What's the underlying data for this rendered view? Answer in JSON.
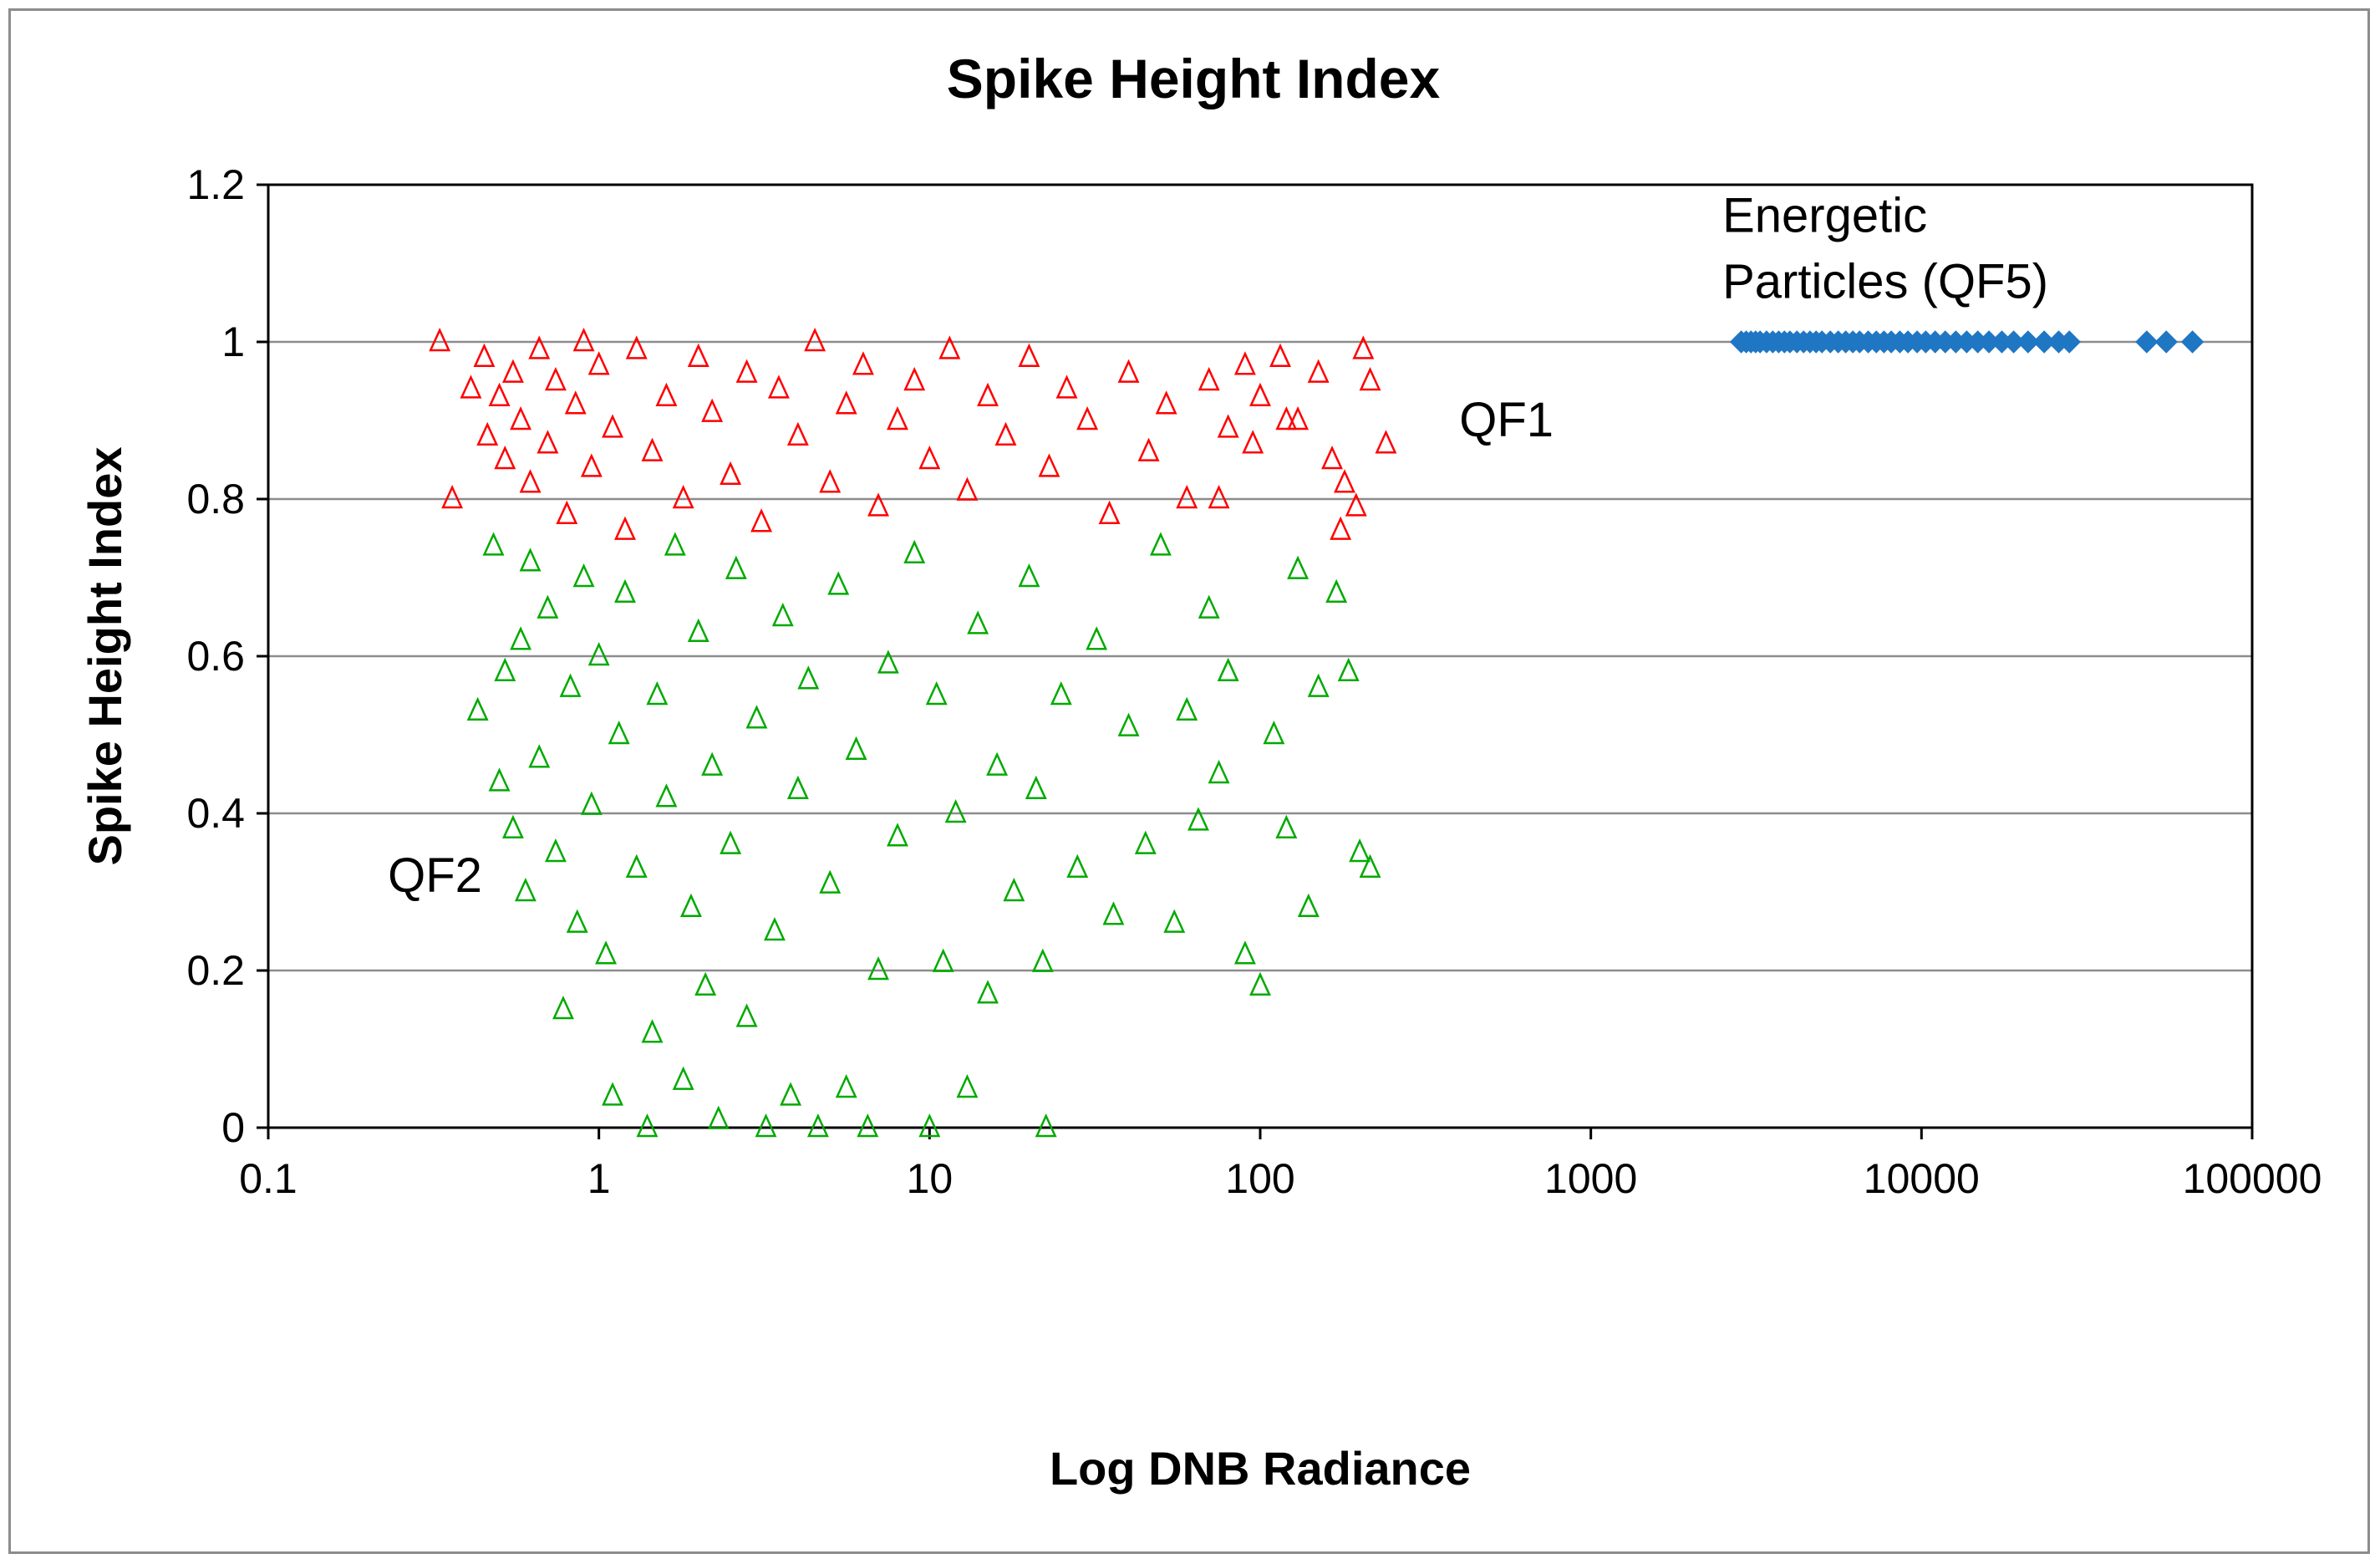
{
  "chart_data": {
    "type": "scatter",
    "title": "Spike Height Index",
    "xlabel": "Log DNB Radiance",
    "ylabel": "Spike Height Index",
    "x_scale": "log",
    "xlim": [
      0.1,
      100000
    ],
    "ylim": [
      0,
      1.2
    ],
    "x_ticks": [
      "0.1",
      "1",
      "10",
      "100",
      "1000",
      "10000",
      "100000"
    ],
    "y_ticks": [
      "0",
      "0.2",
      "0.4",
      "0.6",
      "0.8",
      "1",
      "1.2"
    ],
    "grid": "horizontal",
    "legend": "none",
    "annotations": [
      {
        "text": "QF1",
        "x": 400,
        "y": 0.88
      },
      {
        "text": "QF2",
        "x": 0.23,
        "y": 0.3
      },
      {
        "text": "Energetic",
        "x": 2500,
        "y": 1.14
      },
      {
        "text": "Particles (QF5)",
        "x": 2500,
        "y": 1.056
      }
    ],
    "series": [
      {
        "name": "",
        "marker": "triangle-open",
        "color": "#ff0000",
        "points": [
          [
            0.33,
            1.0
          ],
          [
            0.36,
            0.8
          ],
          [
            0.41,
            0.94
          ],
          [
            0.45,
            0.98
          ],
          [
            0.46,
            0.88
          ],
          [
            0.5,
            0.93
          ],
          [
            0.52,
            0.85
          ],
          [
            0.55,
            0.96
          ],
          [
            0.58,
            0.9
          ],
          [
            0.62,
            0.82
          ],
          [
            0.66,
            0.99
          ],
          [
            0.7,
            0.87
          ],
          [
            0.74,
            0.95
          ],
          [
            0.8,
            0.78
          ],
          [
            0.85,
            0.92
          ],
          [
            0.9,
            1.0
          ],
          [
            0.95,
            0.84
          ],
          [
            1.0,
            0.97
          ],
          [
            1.1,
            0.89
          ],
          [
            1.2,
            0.76
          ],
          [
            1.3,
            0.99
          ],
          [
            1.45,
            0.86
          ],
          [
            1.6,
            0.93
          ],
          [
            1.8,
            0.8
          ],
          [
            2.0,
            0.98
          ],
          [
            2.2,
            0.91
          ],
          [
            2.5,
            0.83
          ],
          [
            2.8,
            0.96
          ],
          [
            3.1,
            0.77
          ],
          [
            3.5,
            0.94
          ],
          [
            4.0,
            0.88
          ],
          [
            4.5,
            1.0
          ],
          [
            5.0,
            0.82
          ],
          [
            5.6,
            0.92
          ],
          [
            6.3,
            0.97
          ],
          [
            7.0,
            0.79
          ],
          [
            8.0,
            0.9
          ],
          [
            9.0,
            0.95
          ],
          [
            10.0,
            0.85
          ],
          [
            11.5,
            0.99
          ],
          [
            13.0,
            0.81
          ],
          [
            15.0,
            0.93
          ],
          [
            17.0,
            0.88
          ],
          [
            20.0,
            0.98
          ],
          [
            23.0,
            0.84
          ],
          [
            26.0,
            0.94
          ],
          [
            30.0,
            0.9
          ],
          [
            35.0,
            0.78
          ],
          [
            40.0,
            0.96
          ],
          [
            46.0,
            0.86
          ],
          [
            52.0,
            0.92
          ],
          [
            60.0,
            0.8
          ],
          [
            70.0,
            0.95
          ],
          [
            80.0,
            0.89
          ],
          [
            90.0,
            0.97
          ],
          [
            100.0,
            0.93
          ],
          [
            115.0,
            0.98
          ],
          [
            130.0,
            0.9
          ],
          [
            150.0,
            0.96
          ],
          [
            165.0,
            0.85
          ],
          [
            180.0,
            0.82
          ],
          [
            195.0,
            0.79
          ],
          [
            205.0,
            0.99
          ],
          [
            215.0,
            0.95
          ],
          [
            240.0,
            0.87
          ],
          [
            175.0,
            0.76
          ],
          [
            120.0,
            0.9
          ],
          [
            95.0,
            0.87
          ],
          [
            75.0,
            0.8
          ]
        ]
      },
      {
        "name": "",
        "marker": "triangle-open",
        "color": "#00aa00",
        "points": [
          [
            0.43,
            0.53
          ],
          [
            0.48,
            0.74
          ],
          [
            0.5,
            0.44
          ],
          [
            0.52,
            0.58
          ],
          [
            0.55,
            0.38
          ],
          [
            0.58,
            0.62
          ],
          [
            0.6,
            0.3
          ],
          [
            0.62,
            0.72
          ],
          [
            0.66,
            0.47
          ],
          [
            0.7,
            0.66
          ],
          [
            0.74,
            0.35
          ],
          [
            0.78,
            0.15
          ],
          [
            0.82,
            0.56
          ],
          [
            0.86,
            0.26
          ],
          [
            0.9,
            0.7
          ],
          [
            0.95,
            0.41
          ],
          [
            1.0,
            0.6
          ],
          [
            1.05,
            0.22
          ],
          [
            1.1,
            0.04
          ],
          [
            1.15,
            0.5
          ],
          [
            1.2,
            0.68
          ],
          [
            1.3,
            0.33
          ],
          [
            1.4,
            0.0
          ],
          [
            1.45,
            0.12
          ],
          [
            1.5,
            0.55
          ],
          [
            1.6,
            0.42
          ],
          [
            1.7,
            0.74
          ],
          [
            1.8,
            0.06
          ],
          [
            1.9,
            0.28
          ],
          [
            2.0,
            0.63
          ],
          [
            2.1,
            0.18
          ],
          [
            2.2,
            0.46
          ],
          [
            2.3,
            0.01
          ],
          [
            2.5,
            0.36
          ],
          [
            2.6,
            0.71
          ],
          [
            2.8,
            0.14
          ],
          [
            3.0,
            0.52
          ],
          [
            3.2,
            0.0
          ],
          [
            3.4,
            0.25
          ],
          [
            3.6,
            0.65
          ],
          [
            3.8,
            0.04
          ],
          [
            4.0,
            0.43
          ],
          [
            4.3,
            0.57
          ],
          [
            4.6,
            0.0
          ],
          [
            5.0,
            0.31
          ],
          [
            5.3,
            0.69
          ],
          [
            5.6,
            0.05
          ],
          [
            6.0,
            0.48
          ],
          [
            6.5,
            0.0
          ],
          [
            7.0,
            0.2
          ],
          [
            7.5,
            0.59
          ],
          [
            8.0,
            0.37
          ],
          [
            9.0,
            0.73
          ],
          [
            10.0,
            0.0
          ],
          [
            10.5,
            0.55
          ],
          [
            11.0,
            0.21
          ],
          [
            12.0,
            0.4
          ],
          [
            13.0,
            0.05
          ],
          [
            14.0,
            0.64
          ],
          [
            15.0,
            0.17
          ],
          [
            16.0,
            0.46
          ],
          [
            18.0,
            0.3
          ],
          [
            20.0,
            0.7
          ],
          [
            21.0,
            0.43
          ],
          [
            22.0,
            0.21
          ],
          [
            22.5,
            0.0
          ],
          [
            25.0,
            0.55
          ],
          [
            28.0,
            0.33
          ],
          [
            32.0,
            0.62
          ],
          [
            36.0,
            0.27
          ],
          [
            40.0,
            0.51
          ],
          [
            45.0,
            0.36
          ],
          [
            50.0,
            0.74
          ],
          [
            55.0,
            0.26
          ],
          [
            60.0,
            0.53
          ],
          [
            65.0,
            0.39
          ],
          [
            70.0,
            0.66
          ],
          [
            75.0,
            0.45
          ],
          [
            80.0,
            0.58
          ],
          [
            90.0,
            0.22
          ],
          [
            100.0,
            0.18
          ],
          [
            110.0,
            0.5
          ],
          [
            120.0,
            0.38
          ],
          [
            130.0,
            0.71
          ],
          [
            140.0,
            0.28
          ],
          [
            150.0,
            0.56
          ],
          [
            170.0,
            0.68
          ],
          [
            185.0,
            0.58
          ],
          [
            200.0,
            0.35
          ],
          [
            215.0,
            0.33
          ]
        ]
      },
      {
        "name": "",
        "marker": "diamond",
        "color": "#1f77c4",
        "points": [
          [
            2850,
            1.0
          ],
          [
            2950,
            1.0
          ],
          [
            3050,
            1.0
          ],
          [
            3150,
            1.0
          ],
          [
            3250,
            1.0
          ],
          [
            3400,
            1.0
          ],
          [
            3550,
            1.0
          ],
          [
            3700,
            1.0
          ],
          [
            3850,
            1.0
          ],
          [
            4000,
            1.0
          ],
          [
            4200,
            1.0
          ],
          [
            4400,
            1.0
          ],
          [
            4600,
            1.0
          ],
          [
            4800,
            1.0
          ],
          [
            5000,
            1.0
          ],
          [
            5300,
            1.0
          ],
          [
            5600,
            1.0
          ],
          [
            5900,
            1.0
          ],
          [
            6200,
            1.0
          ],
          [
            6500,
            1.0
          ],
          [
            6900,
            1.0
          ],
          [
            7300,
            1.0
          ],
          [
            7700,
            1.0
          ],
          [
            8100,
            1.0
          ],
          [
            8600,
            1.0
          ],
          [
            9100,
            1.0
          ],
          [
            9700,
            1.0
          ],
          [
            10300,
            1.0
          ],
          [
            11000,
            1.0
          ],
          [
            11800,
            1.0
          ],
          [
            12700,
            1.0
          ],
          [
            13700,
            1.0
          ],
          [
            14800,
            1.0
          ],
          [
            16000,
            1.0
          ],
          [
            17500,
            1.0
          ],
          [
            19000,
            1.0
          ],
          [
            21000,
            1.0
          ],
          [
            23500,
            1.0
          ],
          [
            26000,
            1.0
          ],
          [
            28000,
            1.0
          ],
          [
            48000,
            1.0
          ],
          [
            55000,
            1.0
          ],
          [
            66000,
            1.0
          ]
        ]
      }
    ]
  }
}
